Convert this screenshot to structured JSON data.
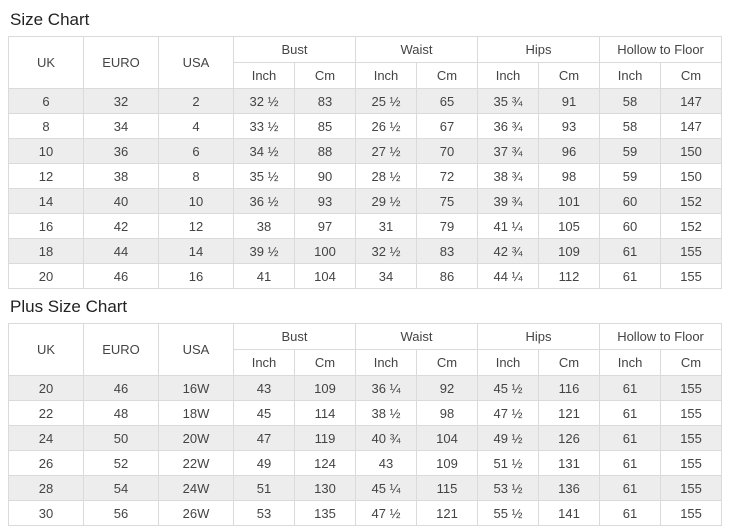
{
  "colors": {
    "background": "#ffffff",
    "row_stripe": "#ededed",
    "border": "#dadada",
    "outer_border": "#cccccc",
    "text": "#444444",
    "title_text": "#222222"
  },
  "chart_data": [
    {
      "type": "table",
      "title": "Size Chart",
      "plain_columns": [
        "UK",
        "EURO",
        "USA"
      ],
      "grouped_columns": [
        {
          "label": "Bust",
          "sub": [
            "Inch",
            "Cm"
          ]
        },
        {
          "label": "Waist",
          "sub": [
            "Inch",
            "Cm"
          ]
        },
        {
          "label": "Hips",
          "sub": [
            "Inch",
            "Cm"
          ]
        },
        {
          "label": "Hollow to Floor",
          "sub": [
            "Inch",
            "Cm"
          ]
        }
      ],
      "rows": [
        [
          "6",
          "32",
          "2",
          "32 ½",
          "83",
          "25 ½",
          "65",
          "35 ¾",
          "91",
          "58",
          "147"
        ],
        [
          "8",
          "34",
          "4",
          "33 ½",
          "85",
          "26 ½",
          "67",
          "36 ¾",
          "93",
          "58",
          "147"
        ],
        [
          "10",
          "36",
          "6",
          "34 ½",
          "88",
          "27 ½",
          "70",
          "37 ¾",
          "96",
          "59",
          "150"
        ],
        [
          "12",
          "38",
          "8",
          "35 ½",
          "90",
          "28 ½",
          "72",
          "38 ¾",
          "98",
          "59",
          "150"
        ],
        [
          "14",
          "40",
          "10",
          "36 ½",
          "93",
          "29 ½",
          "75",
          "39 ¾",
          "101",
          "60",
          "152"
        ],
        [
          "16",
          "42",
          "12",
          "38",
          "97",
          "31",
          "79",
          "41 ¼",
          "105",
          "60",
          "152"
        ],
        [
          "18",
          "44",
          "14",
          "39 ½",
          "100",
          "32 ½",
          "83",
          "42 ¾",
          "109",
          "61",
          "155"
        ],
        [
          "20",
          "46",
          "16",
          "41",
          "104",
          "34",
          "86",
          "44 ¼",
          "112",
          "61",
          "155"
        ]
      ]
    },
    {
      "type": "table",
      "title": "Plus Size Chart",
      "plain_columns": [
        "UK",
        "EURO",
        "USA"
      ],
      "grouped_columns": [
        {
          "label": "Bust",
          "sub": [
            "Inch",
            "Cm"
          ]
        },
        {
          "label": "Waist",
          "sub": [
            "Inch",
            "Cm"
          ]
        },
        {
          "label": "Hips",
          "sub": [
            "Inch",
            "Cm"
          ]
        },
        {
          "label": "Hollow to Floor",
          "sub": [
            "Inch",
            "Cm"
          ]
        }
      ],
      "rows": [
        [
          "20",
          "46",
          "16W",
          "43",
          "109",
          "36 ¼",
          "92",
          "45 ½",
          "116",
          "61",
          "155"
        ],
        [
          "22",
          "48",
          "18W",
          "45",
          "114",
          "38 ½",
          "98",
          "47 ½",
          "121",
          "61",
          "155"
        ],
        [
          "24",
          "50",
          "20W",
          "47",
          "119",
          "40 ¾",
          "104",
          "49 ½",
          "126",
          "61",
          "155"
        ],
        [
          "26",
          "52",
          "22W",
          "49",
          "124",
          "43",
          "109",
          "51 ½",
          "131",
          "61",
          "155"
        ],
        [
          "28",
          "54",
          "24W",
          "51",
          "130",
          "45 ¼",
          "115",
          "53 ½",
          "136",
          "61",
          "155"
        ],
        [
          "30",
          "56",
          "26W",
          "53",
          "135",
          "47 ½",
          "121",
          "55 ½",
          "141",
          "61",
          "155"
        ]
      ]
    }
  ]
}
